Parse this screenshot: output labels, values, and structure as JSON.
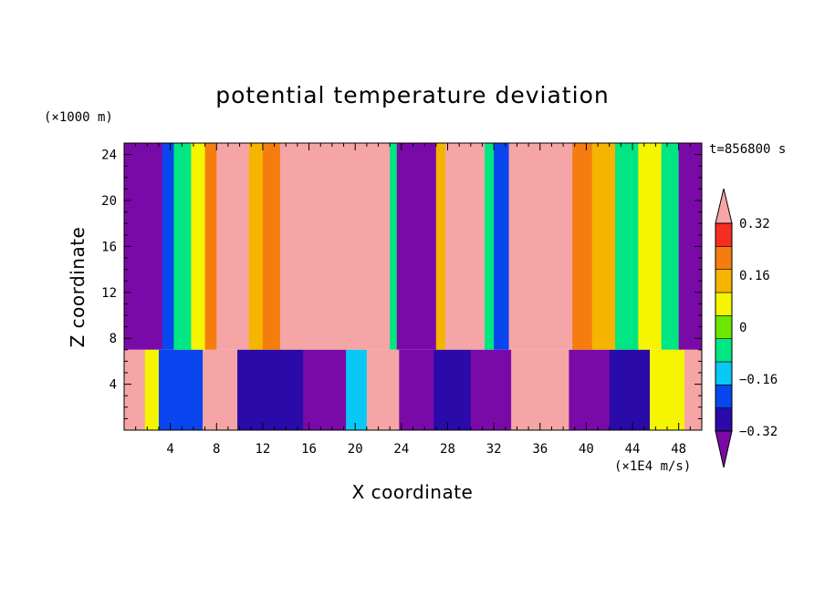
{
  "chart_data": {
    "type": "heatmap",
    "title": "potential temperature deviation",
    "time_label": "t=856800 s",
    "xlabel": "X coordinate",
    "ylabel": "Z coordinate",
    "x_unit": "(×1E4 m/s)",
    "y_unit": "(×1000 m)",
    "xlim": [
      0,
      50
    ],
    "ylim": [
      0,
      25
    ],
    "x_ticks": [
      4,
      8,
      12,
      16,
      20,
      24,
      28,
      32,
      36,
      40,
      44,
      48
    ],
    "y_ticks": [
      4,
      8,
      12,
      16,
      20,
      24
    ],
    "colorbar": {
      "levels": [
        -0.4,
        -0.32,
        -0.24,
        -0.16,
        -0.08,
        0,
        0.08,
        0.16,
        0.24,
        0.32,
        0.4
      ],
      "tick_labels": [
        "0.32",
        "0.16",
        "0",
        "−0.16",
        "−0.32"
      ],
      "tick_values": [
        0.32,
        0.16,
        0,
        -0.16,
        -0.32
      ],
      "colors": [
        "#7a0aa8",
        "#2a0aa8",
        "#0a46f0",
        "#08c8f5",
        "#00e682",
        "#6ee600",
        "#f5f500",
        "#f5b400",
        "#f57d0f",
        "#f52d23",
        "#f5a5a5"
      ]
    },
    "upper_layer": {
      "z_range": [
        7,
        25
      ],
      "columns": [
        {
          "x": [
            0,
            3.3
          ],
          "level": -0.4
        },
        {
          "x": [
            3.3,
            4.3
          ],
          "level": -0.24
        },
        {
          "x": [
            4.3,
            5.8
          ],
          "level": -0.08
        },
        {
          "x": [
            5.8,
            7.0
          ],
          "level": 0.08
        },
        {
          "x": [
            7.0,
            8.0
          ],
          "level": 0.24
        },
        {
          "x": [
            8.0,
            10.8
          ],
          "level": 0.4
        },
        {
          "x": [
            10.8,
            12.0
          ],
          "level": 0.16
        },
        {
          "x": [
            12.0,
            13.5
          ],
          "level": 0.24
        },
        {
          "x": [
            13.5,
            23.0
          ],
          "level": 0.4
        },
        {
          "x": [
            23.0,
            23.6
          ],
          "level": -0.08
        },
        {
          "x": [
            23.6,
            27.0
          ],
          "level": -0.4
        },
        {
          "x": [
            27.0,
            27.8
          ],
          "level": 0.16
        },
        {
          "x": [
            27.8,
            31.2
          ],
          "level": 0.4
        },
        {
          "x": [
            31.2,
            32.0
          ],
          "level": -0.08
        },
        {
          "x": [
            32.0,
            33.3
          ],
          "level": -0.24
        },
        {
          "x": [
            33.3,
            38.8
          ],
          "level": 0.4
        },
        {
          "x": [
            38.8,
            40.5
          ],
          "level": 0.24
        },
        {
          "x": [
            40.5,
            42.5
          ],
          "level": 0.16
        },
        {
          "x": [
            42.5,
            44.5
          ],
          "level": -0.08
        },
        {
          "x": [
            44.5,
            46.5
          ],
          "level": 0.08
        },
        {
          "x": [
            46.5,
            48.0
          ],
          "level": -0.08
        },
        {
          "x": [
            48.0,
            50.0
          ],
          "level": -0.4
        }
      ]
    },
    "lower_layer": {
      "z_range": [
        0,
        7
      ],
      "columns": [
        {
          "x": [
            0,
            1.8
          ],
          "level": 0.4
        },
        {
          "x": [
            1.8,
            3.0
          ],
          "level": 0.08
        },
        {
          "x": [
            3.0,
            6.8
          ],
          "level": -0.24
        },
        {
          "x": [
            6.8,
            9.8
          ],
          "level": 0.4
        },
        {
          "x": [
            9.8,
            15.5
          ],
          "level": -0.32
        },
        {
          "x": [
            15.5,
            19.2
          ],
          "level": -0.4
        },
        {
          "x": [
            19.2,
            21.0
          ],
          "level": -0.16
        },
        {
          "x": [
            21.0,
            23.8
          ],
          "level": 0.4
        },
        {
          "x": [
            23.8,
            26.8
          ],
          "level": -0.4
        },
        {
          "x": [
            26.8,
            30.0
          ],
          "level": -0.32
        },
        {
          "x": [
            30.0,
            33.5
          ],
          "level": -0.4
        },
        {
          "x": [
            33.5,
            38.5
          ],
          "level": 0.4
        },
        {
          "x": [
            38.5,
            42.0
          ],
          "level": -0.4
        },
        {
          "x": [
            42.0,
            45.5
          ],
          "level": -0.32
        },
        {
          "x": [
            45.5,
            48.5
          ],
          "level": 0.08
        },
        {
          "x": [
            48.5,
            50.0
          ],
          "level": 0.4
        }
      ]
    }
  }
}
